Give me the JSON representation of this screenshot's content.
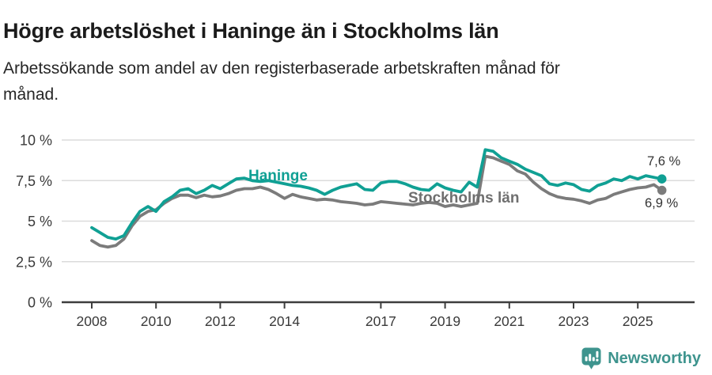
{
  "header": {
    "title": "Högre arbetslöshet i Haninge än i Stockholms län",
    "subtitle": "Arbetssökande som andel av den registerbaserade arbetskraften månad för månad.",
    "subtitle_lines": [
      "Arbetssökande som andel av den registerbaserade arbetskraften månad för",
      "månad."
    ]
  },
  "chart_data": {
    "type": "line",
    "title": "Högre arbetslöshet i Haninge än i Stockholms län",
    "subtitle": "Arbetssökande som andel av den registerbaserade arbetskraften månad för månad.",
    "xlabel": "",
    "ylabel": "",
    "xlim": [
      2007.0,
      2026.8
    ],
    "ylim": [
      0,
      10
    ],
    "grid": true,
    "legend_position": "inline-labels",
    "yticks": [
      0,
      2.5,
      5,
      7.5,
      10
    ],
    "ytick_labels": [
      "0 %",
      "2,5 %",
      "5 %",
      "7,5 %",
      "10 %"
    ],
    "xticks": [
      2008,
      2010,
      2012,
      2014,
      2017,
      2019,
      2021,
      2023,
      2025
    ],
    "xtick_labels": [
      "2008",
      "2010",
      "2012",
      "2014",
      "2017",
      "2019",
      "2021",
      "2023",
      "2025"
    ],
    "x": [
      2008.0,
      2008.25,
      2008.5,
      2008.75,
      2009.0,
      2009.25,
      2009.5,
      2009.75,
      2010.0,
      2010.25,
      2010.5,
      2010.75,
      2011.0,
      2011.25,
      2011.5,
      2011.75,
      2012.0,
      2012.25,
      2012.5,
      2012.75,
      2013.0,
      2013.25,
      2013.5,
      2013.75,
      2014.0,
      2014.25,
      2014.5,
      2014.75,
      2015.0,
      2015.25,
      2015.5,
      2015.75,
      2016.0,
      2016.25,
      2016.5,
      2016.75,
      2017.0,
      2017.25,
      2017.5,
      2017.75,
      2018.0,
      2018.25,
      2018.5,
      2018.75,
      2019.0,
      2019.25,
      2019.5,
      2019.75,
      2020.0,
      2020.25,
      2020.5,
      2020.75,
      2021.0,
      2021.25,
      2021.5,
      2021.75,
      2022.0,
      2022.25,
      2022.5,
      2022.75,
      2023.0,
      2023.25,
      2023.5,
      2023.75,
      2024.0,
      2024.25,
      2024.5,
      2024.75,
      2025.0,
      2025.25,
      2025.5,
      2025.75
    ],
    "series": [
      {
        "name": "Haninge",
        "color": "#10a094",
        "end_label": "7,6 %",
        "end_value": 7.6,
        "values": [
          4.6,
          4.3,
          4.0,
          3.9,
          4.1,
          4.9,
          5.6,
          5.9,
          5.6,
          6.2,
          6.5,
          6.9,
          7.0,
          6.7,
          6.9,
          7.2,
          7.0,
          7.3,
          7.6,
          7.65,
          7.5,
          7.45,
          7.5,
          7.4,
          7.3,
          7.2,
          7.15,
          7.05,
          6.9,
          6.65,
          6.9,
          7.1,
          7.2,
          7.3,
          6.95,
          6.9,
          7.35,
          7.45,
          7.45,
          7.3,
          7.1,
          6.95,
          6.9,
          7.3,
          7.05,
          6.9,
          6.8,
          7.4,
          7.1,
          9.4,
          9.3,
          8.9,
          8.7,
          8.5,
          8.2,
          8.0,
          7.8,
          7.3,
          7.2,
          7.35,
          7.25,
          6.95,
          6.85,
          7.2,
          7.35,
          7.6,
          7.5,
          7.75,
          7.6,
          7.8,
          7.7,
          7.6
        ]
      },
      {
        "name": "Stockholms län",
        "color": "#7b7b7b",
        "end_label": "6,9 %",
        "end_value": 6.9,
        "values": [
          3.8,
          3.5,
          3.4,
          3.5,
          3.9,
          4.7,
          5.3,
          5.6,
          5.7,
          6.1,
          6.4,
          6.6,
          6.6,
          6.45,
          6.6,
          6.5,
          6.55,
          6.7,
          6.9,
          7.0,
          7.0,
          7.1,
          6.95,
          6.7,
          6.4,
          6.65,
          6.5,
          6.4,
          6.3,
          6.35,
          6.3,
          6.2,
          6.15,
          6.1,
          6.0,
          6.05,
          6.2,
          6.15,
          6.1,
          6.05,
          6.0,
          6.1,
          6.15,
          6.1,
          5.9,
          6.0,
          5.9,
          6.0,
          6.1,
          9.0,
          8.9,
          8.7,
          8.5,
          8.1,
          7.9,
          7.4,
          7.0,
          6.7,
          6.5,
          6.4,
          6.35,
          6.25,
          6.1,
          6.3,
          6.4,
          6.65,
          6.8,
          6.95,
          7.05,
          7.1,
          7.25,
          6.9
        ]
      }
    ]
  },
  "colors": {
    "haninge_line": "#10a094",
    "stockholm_line": "#7b7b7b",
    "gridline": "#dbdbdb",
    "axis": "#3d3d3d",
    "tick_text": "#3a3a3a",
    "brand_teal": "#3e948e"
  },
  "footer": {
    "brand": "Newsworthy"
  }
}
